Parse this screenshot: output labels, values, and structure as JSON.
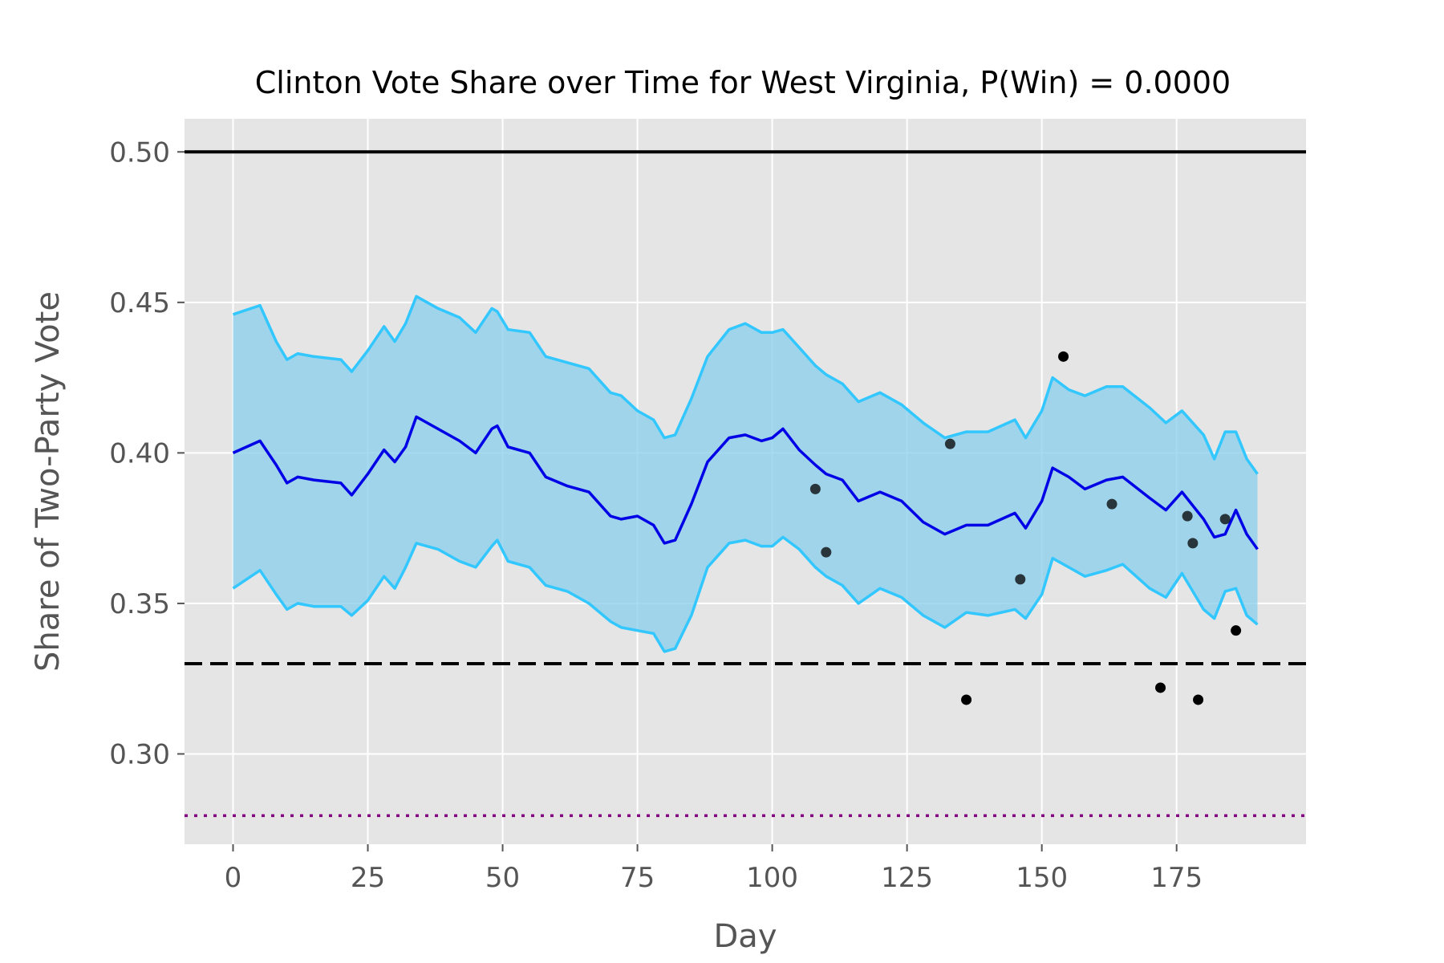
{
  "chart_data": {
    "type": "line",
    "title": "Clinton Vote Share over Time for West Virginia, P(Win) = 0.0000",
    "xlabel": "Day",
    "ylabel": "Share of Two-Party Vote",
    "xlim": [
      -9,
      199
    ],
    "ylim": [
      0.27,
      0.511
    ],
    "xticks": [
      0,
      25,
      50,
      75,
      100,
      125,
      150,
      175
    ],
    "xtick_labels": [
      "0",
      "25",
      "50",
      "75",
      "100",
      "125",
      "150",
      "175"
    ],
    "yticks": [
      0.3,
      0.35,
      0.4,
      0.45,
      0.5
    ],
    "ytick_labels": [
      "0.30",
      "0.35",
      "0.40",
      "0.45",
      "0.50"
    ],
    "grid": true,
    "colors": {
      "background": "#e5e5e5",
      "grid": "#ffffff",
      "band_fill": "#87ceeb",
      "band_edge": "#33c7ff",
      "mean_line": "#0000e6",
      "reference_line": "#000000",
      "dotted_line": "#800080",
      "poll_points": "#000000"
    },
    "reference_lines": [
      {
        "y": 0.5,
        "style": "solid"
      },
      {
        "y": 0.33,
        "style": "dashed"
      },
      {
        "y": 0.2795,
        "style": "dotted"
      }
    ],
    "series": [
      {
        "role": "mean",
        "x": [
          0,
          5,
          8,
          10,
          12,
          15,
          20,
          22,
          25,
          28,
          30,
          32,
          34,
          38,
          42,
          45,
          48,
          49,
          51,
          55,
          58,
          62,
          66,
          70,
          72,
          75,
          78,
          80,
          82,
          85,
          88,
          92,
          95,
          98,
          100,
          102,
          105,
          108,
          110,
          113,
          116,
          120,
          124,
          128,
          132,
          136,
          140,
          145,
          147,
          150,
          152,
          155,
          158,
          162,
          165,
          170,
          173,
          176,
          180,
          182,
          184,
          186,
          188,
          190
        ],
        "y": [
          0.4,
          0.404,
          0.396,
          0.39,
          0.392,
          0.391,
          0.39,
          0.386,
          0.393,
          0.401,
          0.397,
          0.402,
          0.412,
          0.408,
          0.404,
          0.4,
          0.408,
          0.409,
          0.402,
          0.4,
          0.392,
          0.389,
          0.387,
          0.379,
          0.378,
          0.379,
          0.376,
          0.37,
          0.371,
          0.383,
          0.397,
          0.405,
          0.406,
          0.404,
          0.405,
          0.408,
          0.401,
          0.396,
          0.393,
          0.391,
          0.384,
          0.387,
          0.384,
          0.377,
          0.373,
          0.376,
          0.376,
          0.38,
          0.375,
          0.384,
          0.395,
          0.392,
          0.388,
          0.391,
          0.392,
          0.385,
          0.381,
          0.387,
          0.378,
          0.372,
          0.373,
          0.381,
          0.373,
          0.368
        ]
      },
      {
        "role": "upper_bound",
        "x": [
          0,
          5,
          8,
          10,
          12,
          15,
          20,
          22,
          25,
          28,
          30,
          32,
          34,
          38,
          42,
          45,
          48,
          49,
          51,
          55,
          58,
          62,
          66,
          70,
          72,
          75,
          78,
          80,
          82,
          85,
          88,
          92,
          95,
          98,
          100,
          102,
          105,
          108,
          110,
          113,
          116,
          120,
          124,
          128,
          132,
          136,
          140,
          145,
          147,
          150,
          152,
          155,
          158,
          162,
          165,
          170,
          173,
          176,
          180,
          182,
          184,
          186,
          188,
          190
        ],
        "y": [
          0.446,
          0.449,
          0.437,
          0.431,
          0.433,
          0.432,
          0.431,
          0.427,
          0.434,
          0.442,
          0.437,
          0.443,
          0.452,
          0.448,
          0.445,
          0.44,
          0.448,
          0.447,
          0.441,
          0.44,
          0.432,
          0.43,
          0.428,
          0.42,
          0.419,
          0.414,
          0.411,
          0.405,
          0.406,
          0.418,
          0.432,
          0.441,
          0.443,
          0.44,
          0.44,
          0.441,
          0.435,
          0.429,
          0.426,
          0.423,
          0.417,
          0.42,
          0.416,
          0.41,
          0.405,
          0.407,
          0.407,
          0.411,
          0.405,
          0.414,
          0.425,
          0.421,
          0.419,
          0.422,
          0.422,
          0.415,
          0.41,
          0.414,
          0.406,
          0.398,
          0.407,
          0.407,
          0.398,
          0.393
        ]
      },
      {
        "role": "lower_bound",
        "x": [
          0,
          5,
          8,
          10,
          12,
          15,
          20,
          22,
          25,
          28,
          30,
          32,
          34,
          38,
          42,
          45,
          48,
          49,
          51,
          55,
          58,
          62,
          66,
          70,
          72,
          75,
          78,
          80,
          82,
          85,
          88,
          92,
          95,
          98,
          100,
          102,
          105,
          108,
          110,
          113,
          116,
          120,
          124,
          128,
          132,
          136,
          140,
          145,
          147,
          150,
          152,
          155,
          158,
          162,
          165,
          170,
          173,
          176,
          180,
          182,
          184,
          186,
          188,
          190
        ],
        "y": [
          0.355,
          0.361,
          0.353,
          0.348,
          0.35,
          0.349,
          0.349,
          0.346,
          0.351,
          0.359,
          0.355,
          0.362,
          0.37,
          0.368,
          0.364,
          0.362,
          0.369,
          0.371,
          0.364,
          0.362,
          0.356,
          0.354,
          0.35,
          0.344,
          0.342,
          0.341,
          0.34,
          0.334,
          0.335,
          0.346,
          0.362,
          0.37,
          0.371,
          0.369,
          0.369,
          0.372,
          0.368,
          0.362,
          0.359,
          0.356,
          0.35,
          0.355,
          0.352,
          0.346,
          0.342,
          0.347,
          0.346,
          0.348,
          0.345,
          0.353,
          0.365,
          0.362,
          0.359,
          0.361,
          0.363,
          0.355,
          0.352,
          0.36,
          0.348,
          0.345,
          0.354,
          0.355,
          0.346,
          0.343
        ]
      }
    ],
    "poll_points": {
      "x": [
        108,
        110,
        133,
        136,
        146,
        154,
        163,
        172,
        177,
        178,
        179,
        184,
        186
      ],
      "y": [
        0.388,
        0.367,
        0.403,
        0.318,
        0.358,
        0.432,
        0.383,
        0.322,
        0.379,
        0.37,
        0.318,
        0.378,
        0.341
      ]
    }
  }
}
